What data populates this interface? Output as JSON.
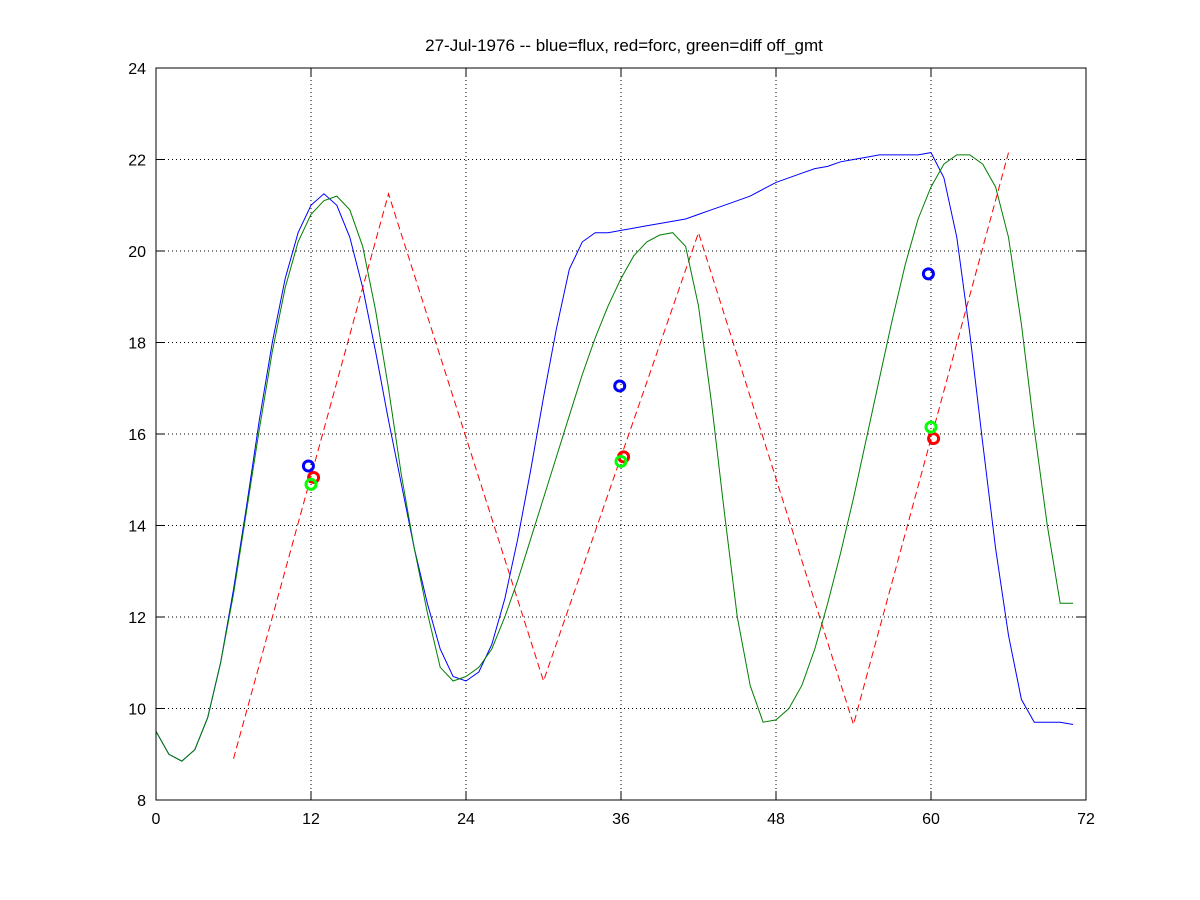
{
  "chart_data": {
    "type": "line",
    "title": "27-Jul-1976 -- blue=flux, red=forc, green=diff off_gmt",
    "xlabel": "",
    "ylabel": "",
    "xlim": [
      0,
      72
    ],
    "ylim": [
      8,
      24
    ],
    "xticks": [
      0,
      12,
      24,
      36,
      48,
      60,
      72
    ],
    "yticks": [
      8,
      10,
      12,
      14,
      16,
      18,
      20,
      22,
      24
    ],
    "grid": true,
    "colors": {
      "blue": "#0000ff",
      "red": "#ff0000",
      "darkgreen": "#007f00",
      "green": "#00ff00"
    },
    "series": [
      {
        "color": "blue",
        "style": "solid",
        "x": [
          0,
          1,
          2,
          3,
          4,
          5,
          6,
          7,
          8,
          9,
          10,
          11,
          12,
          13,
          14,
          15,
          16,
          17,
          18,
          19,
          20,
          21,
          22,
          23,
          24,
          25,
          26,
          27,
          28,
          29,
          30,
          31,
          32,
          33,
          34,
          35,
          36,
          37,
          38,
          39,
          40,
          41,
          42,
          43,
          44,
          45,
          46,
          47,
          48,
          49,
          50,
          51,
          52,
          53,
          54,
          55,
          56,
          57,
          58,
          59,
          60,
          61,
          62,
          63,
          64,
          65,
          66,
          67,
          68,
          69,
          70,
          71
        ],
        "y": [
          9.5,
          9.0,
          8.85,
          9.1,
          9.8,
          11.0,
          12.6,
          14.4,
          16.3,
          18.0,
          19.4,
          20.4,
          21.0,
          21.25,
          21.0,
          20.3,
          19.2,
          17.8,
          16.3,
          14.9,
          13.5,
          12.3,
          11.3,
          10.7,
          10.6,
          10.8,
          11.4,
          12.4,
          13.7,
          15.2,
          16.8,
          18.3,
          19.6,
          20.2,
          20.4,
          20.4,
          20.45,
          20.5,
          20.55,
          20.6,
          20.65,
          20.7,
          20.8,
          20.9,
          21.0,
          21.1,
          21.2,
          21.35,
          21.5,
          21.6,
          21.7,
          21.8,
          21.85,
          21.95,
          22.0,
          22.05,
          22.1,
          22.1,
          22.1,
          22.1,
          22.15,
          21.6,
          20.3,
          18.2,
          15.8,
          13.5,
          11.6,
          10.2,
          9.7,
          9.7,
          9.7,
          9.65
        ]
      },
      {
        "color": "red",
        "style": "dashed",
        "x": [
          6,
          18,
          30,
          42,
          54,
          66
        ],
        "y": [
          8.9,
          21.25,
          10.6,
          20.4,
          9.65,
          22.15
        ]
      },
      {
        "color": "darkgreen",
        "style": "solid",
        "x": [
          0,
          1,
          2,
          3,
          4,
          5,
          6,
          7,
          8,
          9,
          10,
          11,
          12,
          13,
          14,
          15,
          16,
          17,
          18,
          19,
          20,
          21,
          22,
          23,
          24,
          25,
          26,
          27,
          28,
          29,
          30,
          31,
          32,
          33,
          34,
          35,
          36,
          37,
          38,
          39,
          40,
          41,
          42,
          43,
          44,
          45,
          46,
          47,
          48,
          49,
          50,
          51,
          52,
          53,
          54,
          55,
          56,
          57,
          58,
          59,
          60,
          61,
          62,
          63,
          64,
          65,
          66,
          67,
          68,
          69,
          70,
          71
        ],
        "y": [
          9.5,
          9.0,
          8.85,
          9.1,
          9.8,
          11.0,
          12.5,
          14.3,
          16.1,
          17.8,
          19.2,
          20.2,
          20.8,
          21.1,
          21.2,
          20.9,
          20.1,
          18.7,
          17.0,
          15.1,
          13.5,
          12.1,
          10.9,
          10.6,
          10.7,
          10.9,
          11.3,
          12.0,
          12.8,
          13.7,
          14.6,
          15.5,
          16.4,
          17.3,
          18.1,
          18.8,
          19.4,
          19.9,
          20.2,
          20.35,
          20.4,
          20.1,
          18.8,
          16.7,
          14.3,
          12.0,
          10.5,
          9.7,
          9.75,
          10.0,
          10.5,
          11.3,
          12.3,
          13.4,
          14.6,
          15.9,
          17.2,
          18.5,
          19.7,
          20.7,
          21.4,
          21.9,
          22.1,
          22.1,
          21.9,
          21.4,
          20.3,
          18.4,
          16.1,
          14.0,
          12.3,
          12.3
        ]
      }
    ],
    "markers": [
      {
        "color": "blue",
        "x": 11.8,
        "y": 15.3
      },
      {
        "color": "red",
        "x": 12.2,
        "y": 15.05
      },
      {
        "color": "green",
        "x": 12.0,
        "y": 14.9
      },
      {
        "color": "blue",
        "x": 35.9,
        "y": 17.05
      },
      {
        "color": "red",
        "x": 36.2,
        "y": 15.5
      },
      {
        "color": "green",
        "x": 36.0,
        "y": 15.4
      },
      {
        "color": "blue",
        "x": 59.8,
        "y": 19.5
      },
      {
        "color": "red",
        "x": 60.2,
        "y": 15.9
      },
      {
        "color": "green",
        "x": 60.0,
        "y": 16.15
      }
    ]
  }
}
